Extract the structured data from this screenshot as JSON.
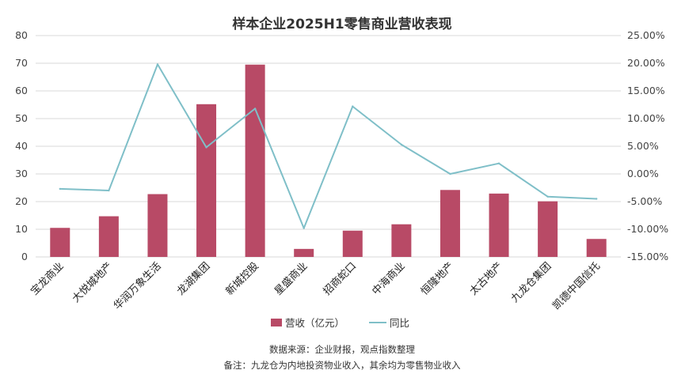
{
  "chart_data": {
    "type": "bar",
    "title": "样本企业2025H1零售商业营收表现",
    "categories": [
      "宝龙商业",
      "大悦城地产",
      "华润万象生活",
      "龙湖集团",
      "新城控股",
      "星盛商业",
      "招商蛇口",
      "中海商业",
      "恒隆地产",
      "太古地产",
      "九龙仓集团",
      "凯德中国信托"
    ],
    "series": [
      {
        "name": "营收（亿元）",
        "type": "bar",
        "axis": "left",
        "color": "#b84a66",
        "values": [
          10.5,
          14.7,
          22.7,
          55.2,
          69.5,
          2.9,
          9.5,
          11.8,
          24.2,
          22.9,
          20.1,
          6.5
        ]
      },
      {
        "name": "同比",
        "type": "line",
        "axis": "right",
        "color": "#7fbfc8",
        "values": [
          -2.7,
          -3.0,
          19.8,
          4.8,
          11.8,
          -9.8,
          12.2,
          5.3,
          0.0,
          1.9,
          -4.1,
          -4.5
        ]
      }
    ],
    "y_left": {
      "min": 0,
      "max": 80,
      "step": 10,
      "ticks": [
        "0",
        "10",
        "20",
        "30",
        "40",
        "50",
        "60",
        "70",
        "80"
      ]
    },
    "y_right": {
      "min": -15,
      "max": 25,
      "step": 5,
      "ticks": [
        "-15.00%",
        "-10.00%",
        "-5.00%",
        "0.00%",
        "5.00%",
        "10.00%",
        "15.00%",
        "20.00%",
        "25.00%"
      ]
    },
    "grid": true,
    "legend_position": "bottom"
  },
  "notes": {
    "source": "数据来源：企业财报，观点指数整理",
    "remark": "备注：九龙仓为内地投资物业收入，其余均为零售物业收入"
  }
}
